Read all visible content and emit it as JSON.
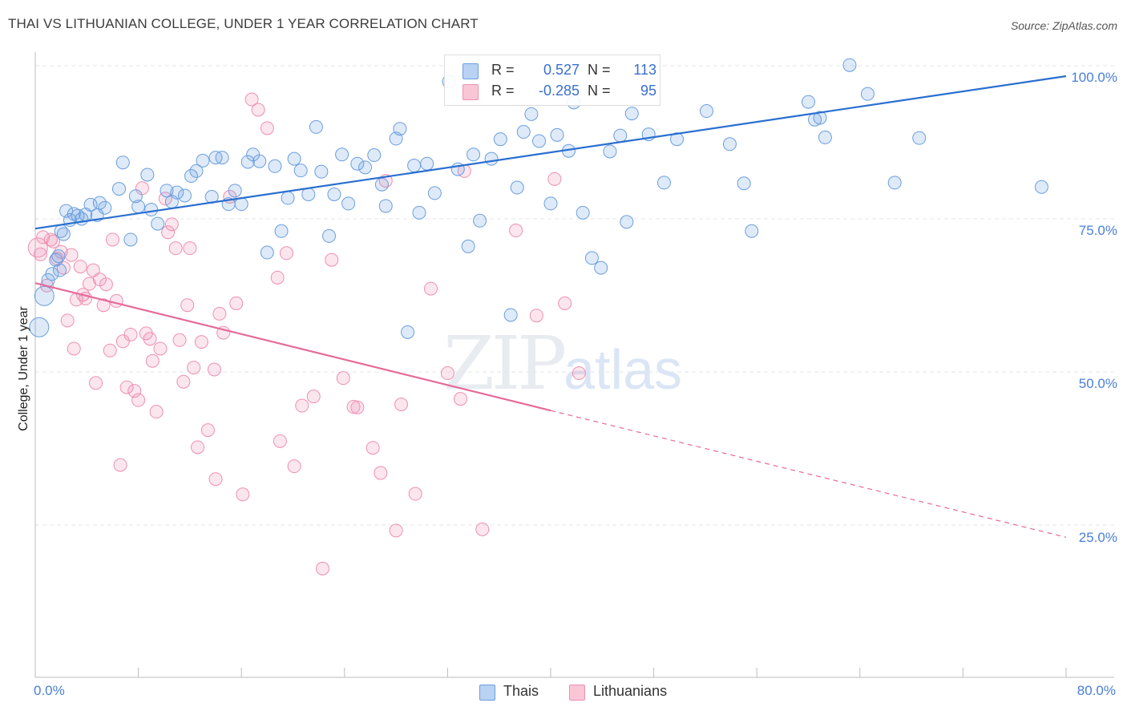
{
  "header": {
    "title": "THAI VS LITHUANIAN COLLEGE, UNDER 1 YEAR CORRELATION CHART",
    "source": "Source: ZipAtlas.com"
  },
  "watermark": {
    "zip": "ZIP",
    "atlas": "atlas"
  },
  "colors": {
    "thais": "#6a9ee0",
    "lithuanians": "#ef8fb0",
    "thais_line": "#2a6fd0",
    "lith_line": "#e66a98"
  },
  "legend": {
    "thais": {
      "r_label": "R =",
      "r_value": "0.527",
      "n_label": "N =",
      "n_value": "113"
    },
    "lithuanians": {
      "r_label": "R =",
      "r_value": "-0.285",
      "n_label": "N =",
      "n_value": "95"
    }
  },
  "bottom_legend": {
    "thais": "Thais",
    "lithuanians": "Lithuanians"
  },
  "chart_data": {
    "type": "scatter",
    "title": "THAI VS LITHUANIAN COLLEGE, UNDER 1 YEAR CORRELATION CHART",
    "xlabel": "",
    "ylabel": "College, Under 1 year",
    "xlim": [
      0,
      80
    ],
    "ylim": [
      0,
      103
    ],
    "x_tick_labels": [
      "0.0%",
      "80.0%"
    ],
    "y_tick_labels": [
      "100.0%",
      "75.0%",
      "50.0%",
      "25.0%"
    ],
    "y_ticks": [
      100,
      75,
      50,
      25
    ],
    "grid": true,
    "legend_position": "top-center",
    "series": [
      {
        "name": "Thais",
        "trend": {
          "x0": 0,
          "y0": 73.4,
          "x1": 80,
          "y1": 98.3
        },
        "points": [
          [
            0.3,
            57.3
          ],
          [
            0.7,
            62.4
          ],
          [
            1.0,
            65.0
          ],
          [
            1.3,
            66.0
          ],
          [
            1.6,
            68.3
          ],
          [
            1.8,
            68.9
          ],
          [
            1.9,
            66.6
          ],
          [
            2.0,
            73.0
          ],
          [
            2.2,
            72.5
          ],
          [
            2.4,
            76.3
          ],
          [
            2.7,
            74.8
          ],
          [
            3.0,
            75.8
          ],
          [
            3.3,
            75.5
          ],
          [
            3.6,
            75.0
          ],
          [
            3.9,
            75.7
          ],
          [
            4.3,
            77.3
          ],
          [
            4.8,
            75.6
          ],
          [
            5.0,
            77.6
          ],
          [
            5.4,
            76.8
          ],
          [
            6.5,
            79.9
          ],
          [
            6.8,
            84.2
          ],
          [
            7.4,
            71.6
          ],
          [
            7.8,
            78.7
          ],
          [
            8.0,
            77.0
          ],
          [
            8.7,
            82.2
          ],
          [
            9.0,
            76.5
          ],
          [
            9.5,
            74.2
          ],
          [
            10.2,
            79.6
          ],
          [
            10.6,
            77.8
          ],
          [
            11.0,
            79.3
          ],
          [
            11.6,
            78.8
          ],
          [
            12.1,
            82.0
          ],
          [
            12.5,
            82.8
          ],
          [
            13.0,
            84.5
          ],
          [
            13.7,
            78.6
          ],
          [
            14.0,
            85.0
          ],
          [
            14.5,
            85.0
          ],
          [
            15.0,
            77.4
          ],
          [
            15.5,
            79.6
          ],
          [
            16.0,
            77.4
          ],
          [
            16.5,
            84.3
          ],
          [
            16.9,
            85.5
          ],
          [
            17.4,
            84.4
          ],
          [
            18.0,
            69.5
          ],
          [
            18.6,
            83.6
          ],
          [
            19.1,
            73.0
          ],
          [
            19.6,
            78.4
          ],
          [
            20.1,
            84.8
          ],
          [
            20.6,
            82.9
          ],
          [
            21.2,
            79.0
          ],
          [
            21.8,
            90.0
          ],
          [
            22.2,
            82.7
          ],
          [
            22.8,
            72.2
          ],
          [
            23.2,
            79.0
          ],
          [
            23.8,
            85.5
          ],
          [
            24.3,
            77.5
          ],
          [
            25.0,
            84.0
          ],
          [
            25.6,
            83.4
          ],
          [
            26.3,
            85.4
          ],
          [
            26.9,
            80.6
          ],
          [
            27.2,
            77.1
          ],
          [
            28.0,
            88.1
          ],
          [
            28.3,
            89.7
          ],
          [
            28.9,
            56.5
          ],
          [
            29.4,
            83.7
          ],
          [
            29.8,
            76.0
          ],
          [
            30.4,
            84.0
          ],
          [
            31.0,
            79.2
          ],
          [
            32.1,
            97.4
          ],
          [
            32.8,
            83.1
          ],
          [
            33.6,
            70.5
          ],
          [
            34.0,
            85.5
          ],
          [
            34.5,
            74.7
          ],
          [
            35.4,
            84.8
          ],
          [
            36.1,
            88.0
          ],
          [
            36.9,
            59.3
          ],
          [
            37.4,
            80.1
          ],
          [
            37.9,
            89.2
          ],
          [
            38.5,
            92.1
          ],
          [
            39.1,
            87.7
          ],
          [
            40.0,
            77.5
          ],
          [
            40.5,
            88.7
          ],
          [
            41.4,
            86.1
          ],
          [
            41.8,
            94.0
          ],
          [
            42.5,
            76.0
          ],
          [
            43.2,
            68.6
          ],
          [
            43.9,
            67.0
          ],
          [
            44.6,
            86.0
          ],
          [
            45.4,
            88.6
          ],
          [
            45.9,
            74.5
          ],
          [
            46.3,
            92.2
          ],
          [
            47.6,
            88.8
          ],
          [
            48.8,
            80.9
          ],
          [
            49.8,
            88.0
          ],
          [
            52.1,
            92.6
          ],
          [
            53.9,
            87.2
          ],
          [
            55.0,
            80.8
          ],
          [
            55.6,
            73.0
          ],
          [
            60.0,
            94.1
          ],
          [
            60.5,
            91.2
          ],
          [
            60.9,
            91.5
          ],
          [
            61.3,
            88.3
          ],
          [
            63.2,
            100.1
          ],
          [
            64.6,
            95.4
          ],
          [
            66.7,
            80.9
          ],
          [
            68.6,
            88.2
          ],
          [
            78.1,
            80.2
          ]
        ]
      },
      {
        "name": "Lithuanians",
        "trend": {
          "x0": 0,
          "y0": 64.5,
          "x1": 40,
          "y1": 43.7,
          "dash_to_x": 80,
          "dash_to_y": 23.0
        },
        "points": [
          [
            0.2,
            70.3
          ],
          [
            0.4,
            69.2
          ],
          [
            0.6,
            72.0
          ],
          [
            0.9,
            64.1
          ],
          [
            1.2,
            71.6
          ],
          [
            1.4,
            71.3
          ],
          [
            1.7,
            68.5
          ],
          [
            2.0,
            69.6
          ],
          [
            2.2,
            67.0
          ],
          [
            2.5,
            58.4
          ],
          [
            2.8,
            69.1
          ],
          [
            3.0,
            53.8
          ],
          [
            3.2,
            61.8
          ],
          [
            3.5,
            67.2
          ],
          [
            3.7,
            62.6
          ],
          [
            3.9,
            62.0
          ],
          [
            4.2,
            64.4
          ],
          [
            4.5,
            66.6
          ],
          [
            4.7,
            48.2
          ],
          [
            5.0,
            65.1
          ],
          [
            5.3,
            60.9
          ],
          [
            5.5,
            64.3
          ],
          [
            5.8,
            53.5
          ],
          [
            6.0,
            71.6
          ],
          [
            6.3,
            61.6
          ],
          [
            6.6,
            34.8
          ],
          [
            6.8,
            55.0
          ],
          [
            7.1,
            47.5
          ],
          [
            7.4,
            56.1
          ],
          [
            7.7,
            46.9
          ],
          [
            8.0,
            45.4
          ],
          [
            8.3,
            80.0
          ],
          [
            8.6,
            56.3
          ],
          [
            8.9,
            55.4
          ],
          [
            9.1,
            51.8
          ],
          [
            9.4,
            43.5
          ],
          [
            9.7,
            53.8
          ],
          [
            10.1,
            78.3
          ],
          [
            10.3,
            72.8
          ],
          [
            10.6,
            74.1
          ],
          [
            10.9,
            70.2
          ],
          [
            11.2,
            55.2
          ],
          [
            11.5,
            48.4
          ],
          [
            11.8,
            60.9
          ],
          [
            12.0,
            70.2
          ],
          [
            12.3,
            50.7
          ],
          [
            12.6,
            37.7
          ],
          [
            12.9,
            54.9
          ],
          [
            13.4,
            40.5
          ],
          [
            13.9,
            50.4
          ],
          [
            14.0,
            32.5
          ],
          [
            14.3,
            59.5
          ],
          [
            14.6,
            56.4
          ],
          [
            15.1,
            78.6
          ],
          [
            15.6,
            61.2
          ],
          [
            16.1,
            30.0
          ],
          [
            16.8,
            94.5
          ],
          [
            17.3,
            92.8
          ],
          [
            18.0,
            89.8
          ],
          [
            18.8,
            65.4
          ],
          [
            19.0,
            38.7
          ],
          [
            19.5,
            69.4
          ],
          [
            20.1,
            34.6
          ],
          [
            20.7,
            44.5
          ],
          [
            21.6,
            46.0
          ],
          [
            22.3,
            17.9
          ],
          [
            23.0,
            68.3
          ],
          [
            23.9,
            49.0
          ],
          [
            24.7,
            44.3
          ],
          [
            25.0,
            44.2
          ],
          [
            26.2,
            37.6
          ],
          [
            26.8,
            33.5
          ],
          [
            27.2,
            81.2
          ],
          [
            28.0,
            24.1
          ],
          [
            28.4,
            44.7
          ],
          [
            29.5,
            30.1
          ],
          [
            30.7,
            63.6
          ],
          [
            32.0,
            49.8
          ],
          [
            33.0,
            45.6
          ],
          [
            33.3,
            82.8
          ],
          [
            34.7,
            24.3
          ],
          [
            37.3,
            73.1
          ],
          [
            38.9,
            59.2
          ],
          [
            40.3,
            81.5
          ],
          [
            41.1,
            61.2
          ],
          [
            42.2,
            49.8
          ]
        ]
      }
    ]
  }
}
